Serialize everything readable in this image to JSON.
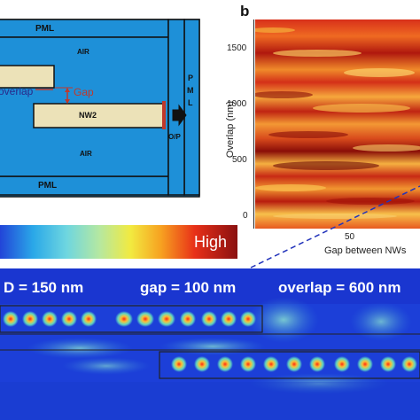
{
  "schematic": {
    "pml_top": "PML",
    "pml_bottom": "PML",
    "air_top": "AIR",
    "air_bottom": "AIR",
    "nw2": "NW2",
    "overlap": "overlap",
    "gap": "Gap",
    "pml_right": [
      "P",
      "M",
      "L"
    ],
    "output": "O/P"
  },
  "colorbar": {
    "high": "High"
  },
  "panel_b": {
    "label": "b",
    "ylabel": "Overlap (nm)",
    "xlabel": "Gap between NWs",
    "yticks": [
      "1500",
      "1000",
      "500",
      "0"
    ],
    "xticks": [
      "50"
    ]
  },
  "field_map": {
    "d": "D = 150 nm",
    "gap": "gap = 100 nm",
    "overlap": "overlap = 600 nm"
  },
  "colors": {
    "pml": "#1e90d8",
    "air": "#1e90d8",
    "nw": "#ece2b8",
    "accent": "#c0392b",
    "dashed": "#2233bb"
  }
}
